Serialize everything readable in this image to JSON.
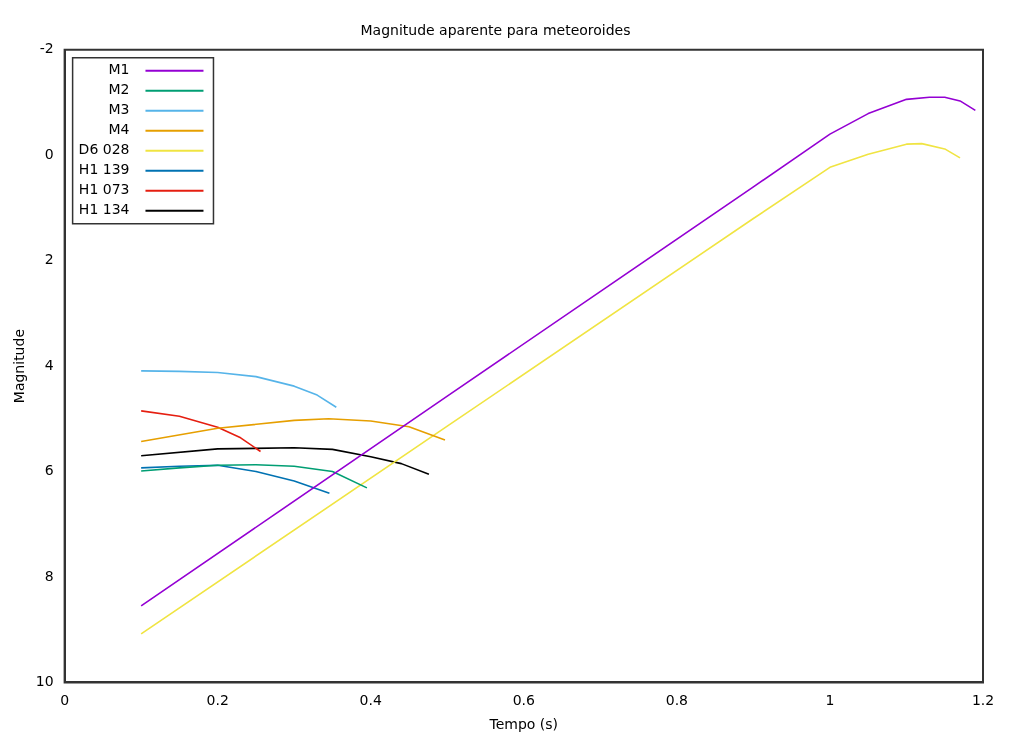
{
  "chart_data": {
    "type": "line",
    "title": "Magnitude aparente para meteoroides",
    "xlabel": "Tempo (s)",
    "ylabel": "Magnitude",
    "xlim": [
      0,
      1.2
    ],
    "xticks": [
      0,
      0.2,
      0.4,
      0.6,
      0.8,
      1,
      1.2
    ],
    "ylim": [
      10,
      -2
    ],
    "yticks": [
      -2,
      0,
      2,
      4,
      6,
      8,
      10
    ],
    "grid": false,
    "legend": "top left",
    "marker": "none",
    "line_style": "solid",
    "series": [
      {
        "name": "M1",
        "color": "#9400d3",
        "x": [
          0.1,
          0.5,
          0.9,
          1.0,
          1.05,
          1.1,
          1.13,
          1.15,
          1.17,
          1.19
        ],
        "values": [
          8.55,
          4.57,
          0.6,
          -0.4,
          -0.79,
          -1.06,
          -1.1,
          -1.1,
          -1.03,
          -0.85
        ]
      },
      {
        "name": "M2",
        "color": "#009e73",
        "x": [
          0.1,
          0.15,
          0.2,
          0.25,
          0.3,
          0.35,
          0.395
        ],
        "values": [
          5.99,
          5.93,
          5.88,
          5.87,
          5.9,
          6.0,
          6.31
        ]
      },
      {
        "name": "M3",
        "color": "#56b4e9",
        "x": [
          0.1,
          0.15,
          0.2,
          0.25,
          0.3,
          0.33,
          0.355
        ],
        "values": [
          4.09,
          4.1,
          4.12,
          4.2,
          4.38,
          4.55,
          4.78
        ]
      },
      {
        "name": "M4",
        "color": "#e69f00",
        "x": [
          0.1,
          0.2,
          0.3,
          0.345,
          0.4,
          0.45,
          0.497
        ],
        "values": [
          5.43,
          5.18,
          5.03,
          5.0,
          5.04,
          5.15,
          5.4
        ]
      },
      {
        "name": "D6 028",
        "color": "#f0e442",
        "x": [
          0.1,
          0.5,
          0.9,
          1.0,
          1.05,
          1.1,
          1.12,
          1.15,
          1.17
        ],
        "values": [
          9.08,
          5.14,
          1.2,
          0.23,
          -0.02,
          -0.21,
          -0.22,
          -0.12,
          0.05
        ]
      },
      {
        "name": "H1 139",
        "color": "#0072b2",
        "x": [
          0.1,
          0.15,
          0.2,
          0.25,
          0.3,
          0.346
        ],
        "values": [
          5.93,
          5.9,
          5.88,
          6.0,
          6.18,
          6.41
        ]
      },
      {
        "name": "H1 073",
        "color": "#e51e10",
        "x": [
          0.1,
          0.15,
          0.2,
          0.23,
          0.256
        ],
        "values": [
          4.85,
          4.95,
          5.16,
          5.36,
          5.62
        ]
      },
      {
        "name": "H1 134",
        "color": "#000000",
        "x": [
          0.1,
          0.2,
          0.3,
          0.35,
          0.4,
          0.44,
          0.476
        ],
        "values": [
          5.7,
          5.57,
          5.55,
          5.58,
          5.72,
          5.85,
          6.05
        ]
      }
    ]
  }
}
